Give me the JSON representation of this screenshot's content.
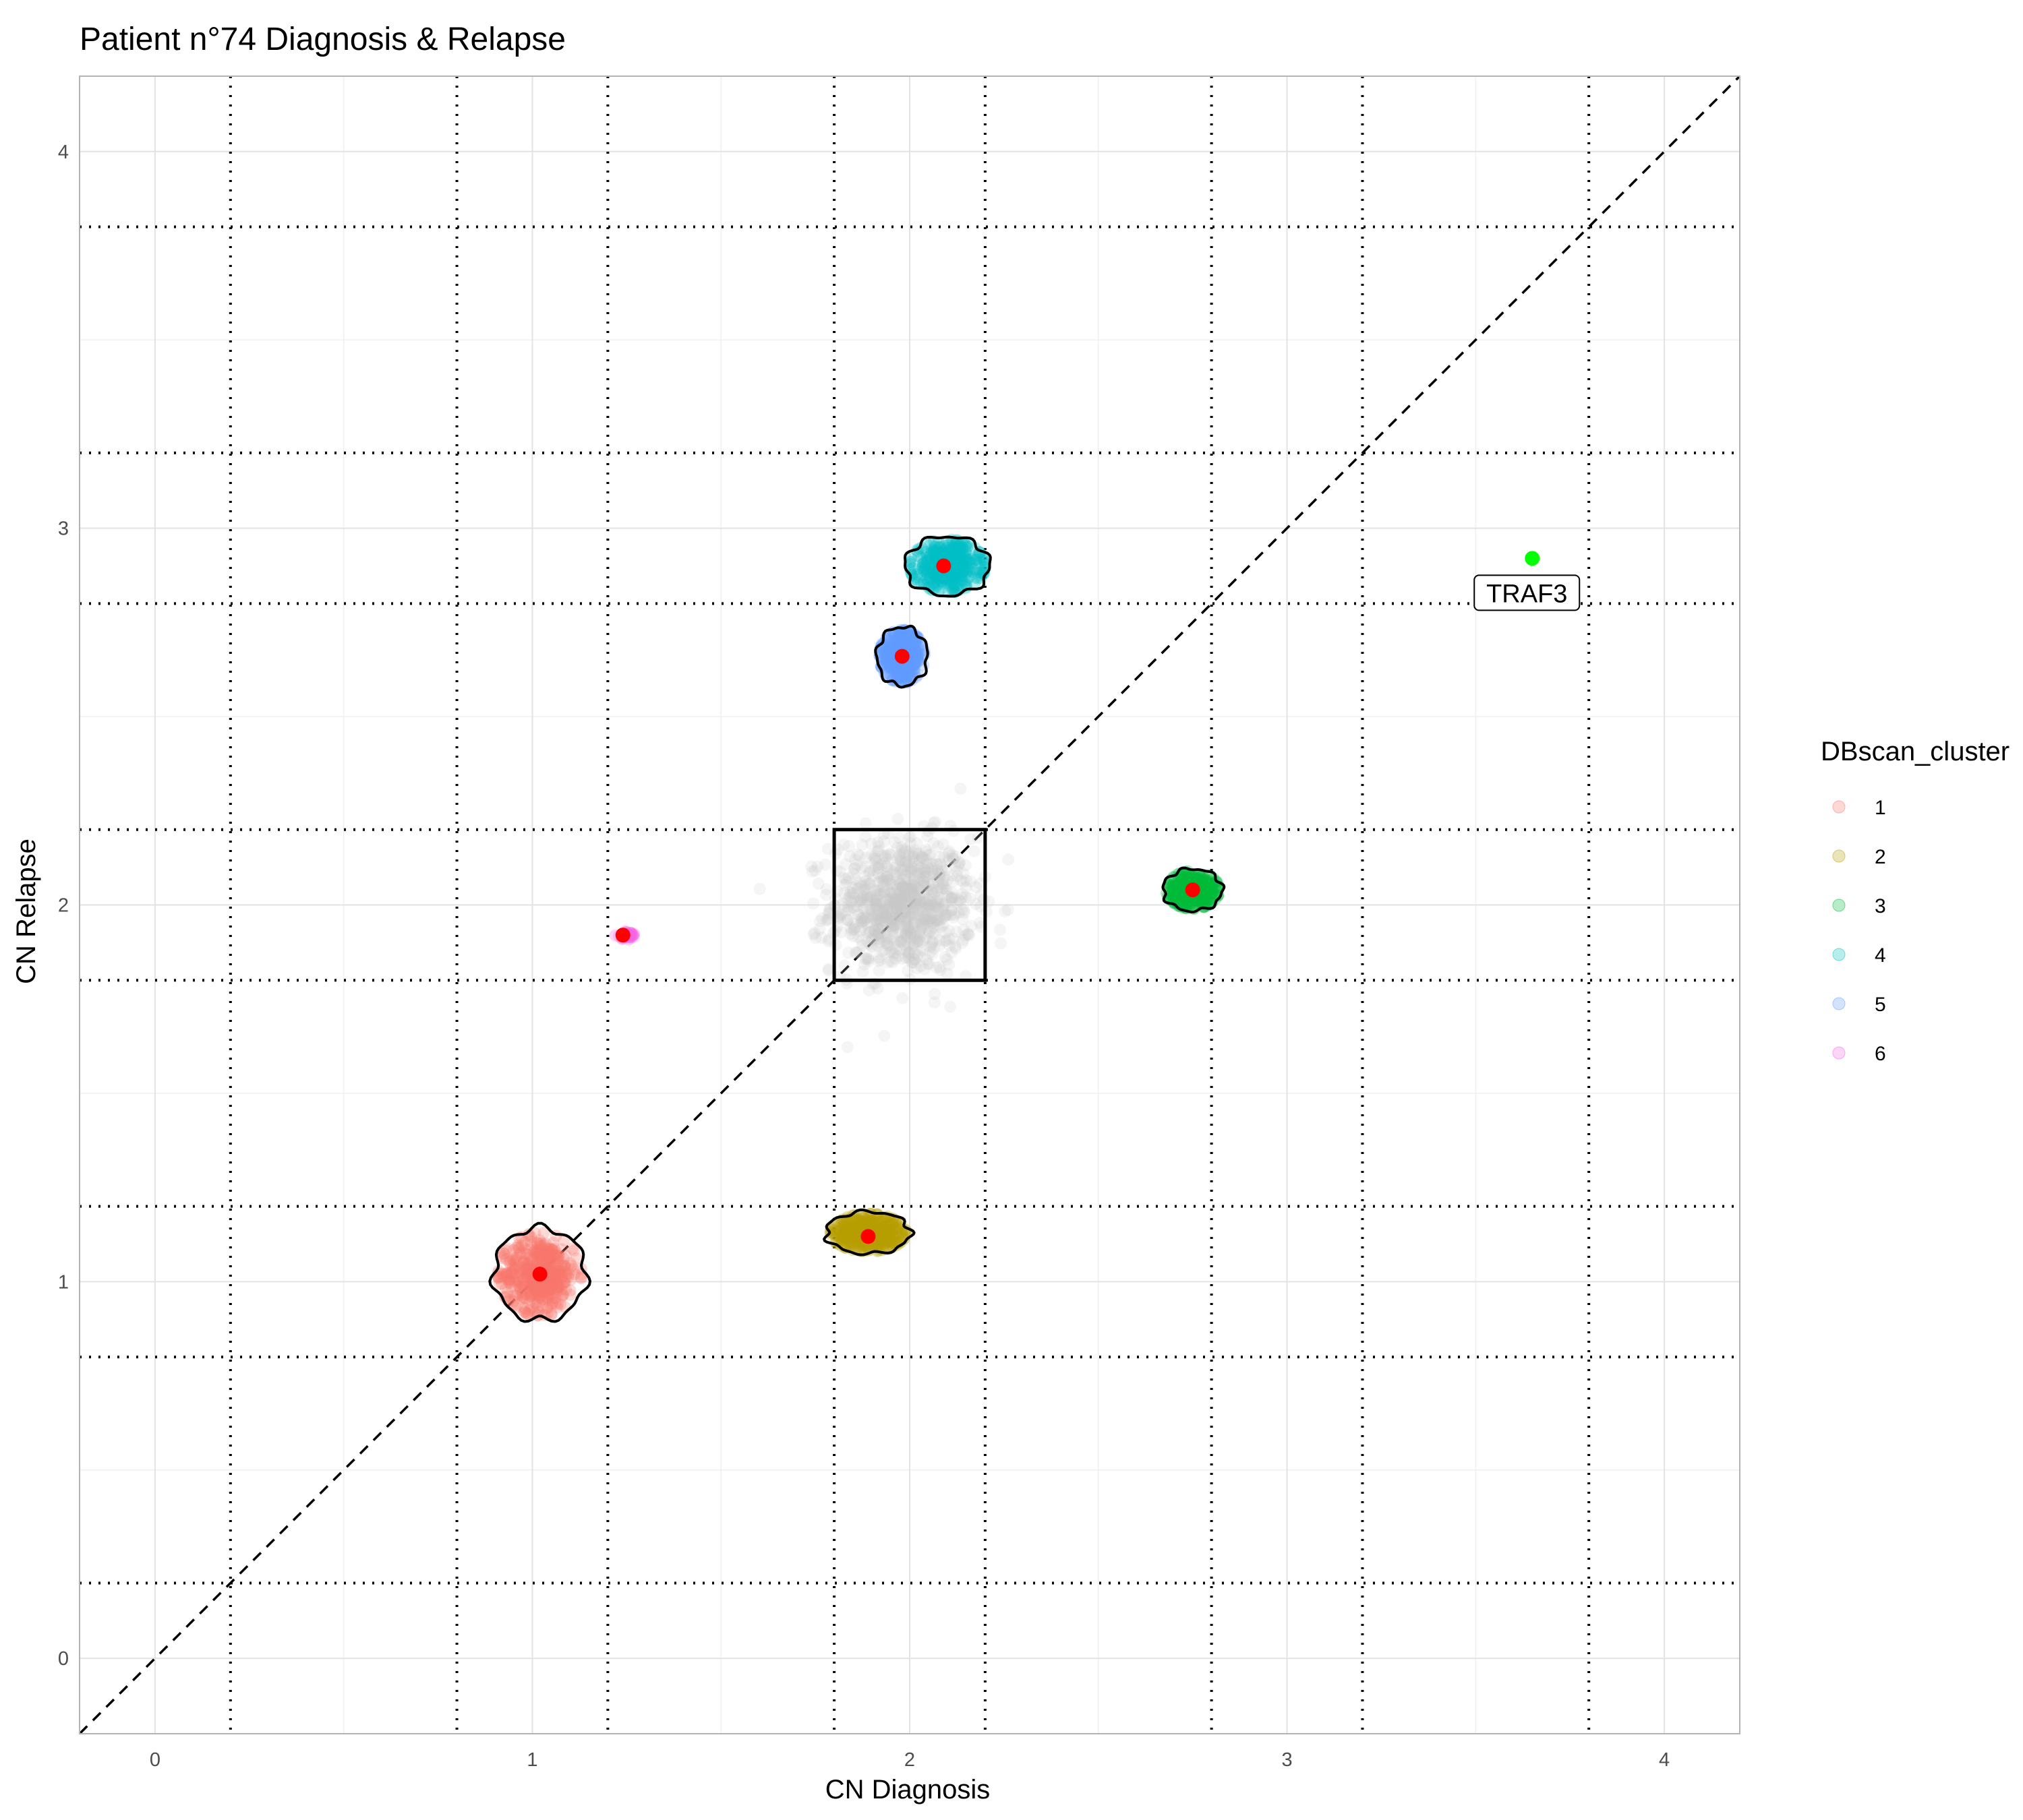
{
  "chart_data": {
    "type": "scatter",
    "title": "Patient n°74 Diagnosis & Relapse",
    "xlabel": "CN Diagnosis",
    "ylabel": "CN Relapse",
    "xlim": [
      -0.2,
      4.2
    ],
    "ylim": [
      -0.2,
      4.2
    ],
    "x_ticks": [
      "0",
      "1",
      "2",
      "3",
      "4"
    ],
    "y_ticks": [
      "0",
      "1",
      "2",
      "3",
      "4"
    ],
    "x_tick_values": [
      0,
      1,
      2,
      3,
      4
    ],
    "y_tick_values": [
      0,
      1,
      2,
      3,
      4
    ],
    "grid": true,
    "reference_lines": {
      "diagonal": "y = x",
      "vertical_dotted": [
        0.2,
        0.8,
        1.2,
        1.8,
        2.2,
        2.8,
        3.2,
        3.8
      ],
      "horizontal_dotted": [
        0.2,
        0.8,
        1.2,
        1.8,
        2.2,
        2.8,
        3.2,
        3.8
      ]
    },
    "neutral_box": {
      "x": [
        1.8,
        2.2
      ],
      "y": [
        1.8,
        2.2
      ],
      "color": "#c8c8c8",
      "center": [
        1.98,
        2.0
      ],
      "spread": [
        0.17,
        0.15
      ]
    },
    "legend": {
      "title": "DBscan_cluster",
      "position": "right",
      "entries": [
        "1",
        "2",
        "3",
        "4",
        "5",
        "6"
      ]
    },
    "clusters": [
      {
        "name": "1",
        "color": "#F8766D",
        "center": [
          1.02,
          1.02
        ],
        "spread": [
          0.11,
          0.11
        ],
        "centroid": [
          1.02,
          1.02
        ]
      },
      {
        "name": "2",
        "color": "#B79F00",
        "center": [
          1.89,
          1.13
        ],
        "spread": [
          0.1,
          0.05
        ],
        "centroid": [
          1.89,
          1.12
        ]
      },
      {
        "name": "3",
        "color": "#00BA38",
        "center": [
          2.75,
          2.04
        ],
        "spread": [
          0.07,
          0.05
        ],
        "centroid": [
          2.75,
          2.04
        ]
      },
      {
        "name": "4",
        "color": "#00BFC4",
        "center": [
          2.1,
          2.9
        ],
        "spread": [
          0.1,
          0.07
        ],
        "centroid": [
          2.09,
          2.9
        ]
      },
      {
        "name": "5",
        "color": "#619CFF",
        "center": [
          1.98,
          2.66
        ],
        "spread": [
          0.06,
          0.07
        ],
        "centroid": [
          1.98,
          2.66
        ]
      },
      {
        "name": "6",
        "color": "#F564E3",
        "center": [
          1.25,
          1.92
        ],
        "spread": [
          0.03,
          0.012
        ],
        "centroid": [
          1.24,
          1.92
        ]
      }
    ],
    "centroid_color": "#FF0000",
    "highlight": {
      "label": "TRAF3",
      "x": 3.65,
      "y": 2.92,
      "color": "#00FF00"
    }
  }
}
